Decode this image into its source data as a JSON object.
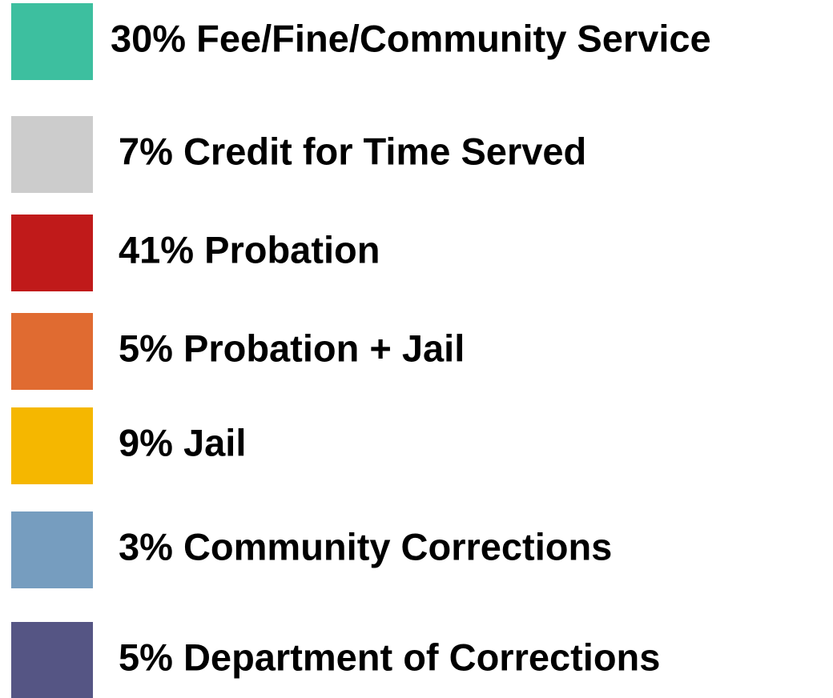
{
  "legend": {
    "items": [
      {
        "label": "30% Fee/Fine/Community Service",
        "color": "#3dbf9f"
      },
      {
        "label": "7% Credit for Time Served",
        "color": "#cccccc"
      },
      {
        "label": "41% Probation",
        "color": "#c01a1a"
      },
      {
        "label": "5% Probation + Jail",
        "color": "#e06b31"
      },
      {
        "label": "9% Jail",
        "color": "#f5b700"
      },
      {
        "label": "3% Community Corrections",
        "color": "#769dbf"
      },
      {
        "label": "5% Department of Corrections",
        "color": "#555584"
      }
    ]
  }
}
